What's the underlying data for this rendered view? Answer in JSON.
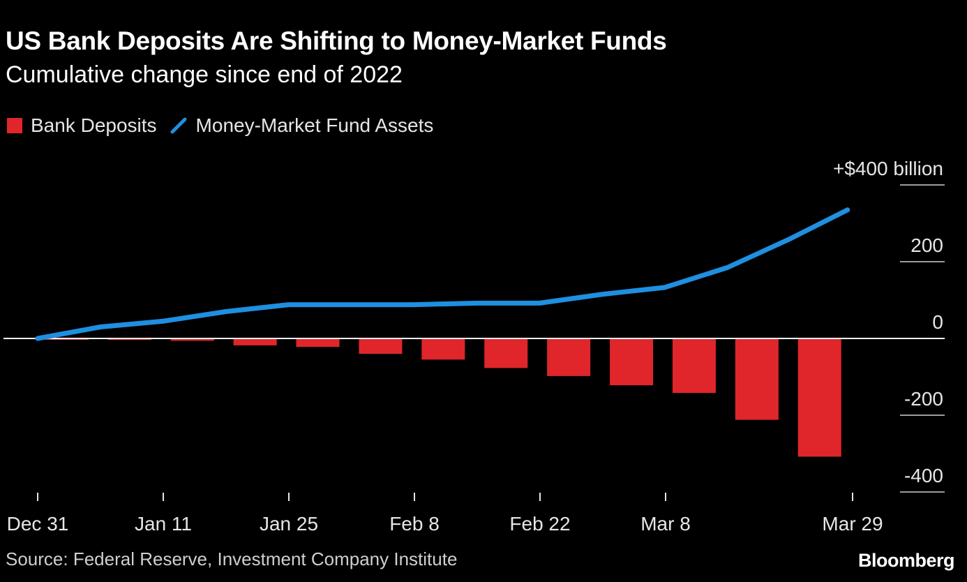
{
  "header": {
    "title": "US Bank Deposits Are Shifting to Money-Market Funds",
    "subtitle": "Cumulative change since end of 2022"
  },
  "footer": {
    "source": "Source: Federal Reserve, Investment Company Institute",
    "brand": "Bloomberg"
  },
  "colors": {
    "background": "#000000",
    "bar": "#e0262a",
    "line": "#1f8fe0",
    "grid": "#ffffff",
    "text": "#ffffff"
  },
  "chart_data": {
    "type": "bar",
    "title": "US Bank Deposits Are Shifting to Money-Market Funds",
    "subtitle": "Cumulative change since end of 2022",
    "ylim": [
      -400,
      400
    ],
    "y_ticks": [
      400,
      200,
      0,
      -200,
      -400
    ],
    "y_tick_labels": [
      "+$400 billion",
      "200",
      "0",
      "-200",
      "-400"
    ],
    "x_tick_labels": [
      "Dec 31",
      "Jan 11",
      "Jan 25",
      "Feb 8",
      "Feb 22",
      "Mar 8",
      "Mar 29"
    ],
    "legend_position": "top-left",
    "grid": false,
    "series": [
      {
        "name": "Bank Deposits",
        "type": "bar",
        "values": [
          -2,
          -4,
          -6,
          -18,
          -22,
          -40,
          -55,
          -77,
          -98,
          -122,
          -142,
          -212,
          -308
        ]
      },
      {
        "name": "Money-Market Fund Assets",
        "type": "line",
        "values": [
          0,
          30,
          45,
          70,
          88,
          88,
          88,
          92,
          92,
          115,
          133,
          185,
          260,
          335
        ]
      }
    ]
  }
}
